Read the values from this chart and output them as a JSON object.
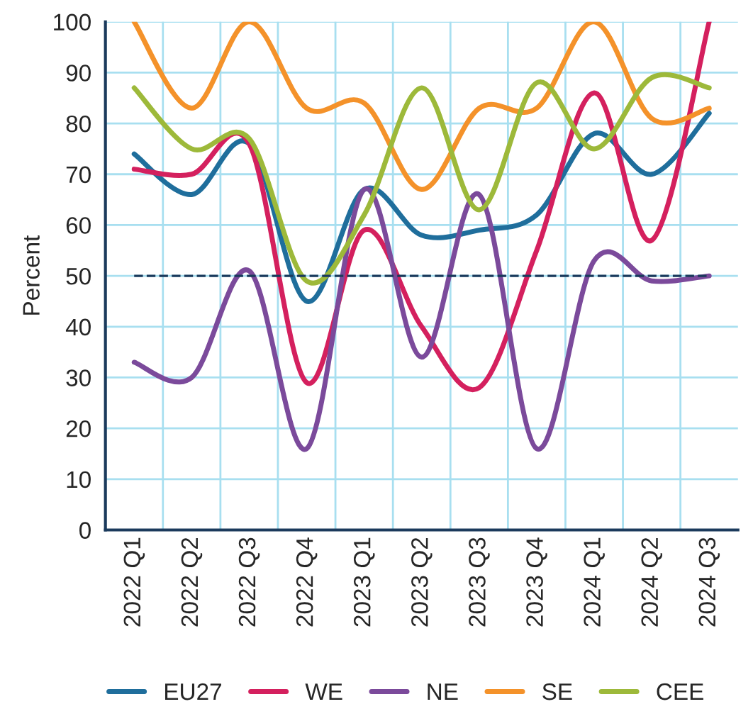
{
  "chart_data": {
    "type": "line",
    "ylabel": "Percent",
    "categories": [
      "2022 Q1",
      "2022 Q2",
      "2022 Q3",
      "2022 Q4",
      "2023 Q1",
      "2023 Q2",
      "2023 Q3",
      "2023 Q4",
      "2024 Q1",
      "2024 Q2",
      "2024 Q3"
    ],
    "series": [
      {
        "name": "EU27",
        "color": "#1f6e9c",
        "values": [
          74,
          66,
          76,
          45,
          67,
          58,
          59,
          62,
          78,
          70,
          82
        ]
      },
      {
        "name": "WE",
        "color": "#d4205e",
        "values": [
          71,
          70,
          76,
          29,
          59,
          40,
          28,
          55,
          86,
          57,
          100
        ]
      },
      {
        "name": "NE",
        "color": "#7b4a9b",
        "values": [
          33,
          30,
          51,
          16,
          67,
          34,
          66,
          16,
          53,
          49,
          50
        ]
      },
      {
        "name": "SE",
        "color": "#f4922a",
        "values": [
          100,
          83,
          100,
          83,
          84,
          67,
          83,
          83,
          100,
          81,
          83
        ]
      },
      {
        "name": "CEE",
        "color": "#9db93a",
        "values": [
          87,
          75,
          77,
          49,
          62,
          87,
          63,
          88,
          75,
          89,
          87
        ]
      }
    ],
    "ylim": [
      0,
      100
    ],
    "yticks": [
      0,
      10,
      20,
      30,
      40,
      50,
      60,
      70,
      80,
      90,
      100
    ],
    "ref_lines": [
      {
        "axis": "y",
        "value": 50,
        "color": "#1b3a5c",
        "line_style": "dashed"
      }
    ],
    "grid": true,
    "legend": "bottom",
    "marker": "none",
    "line_style": "solid"
  }
}
